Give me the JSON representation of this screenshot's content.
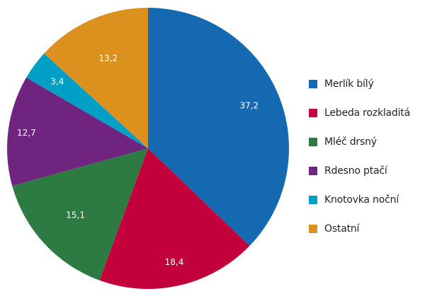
{
  "chart_data": {
    "type": "pie",
    "title": "",
    "start_angle": "12 o'clock",
    "direction": "clockwise",
    "unit": "%",
    "decimal_separator": ",",
    "legend_position": "right",
    "slices": [
      {
        "label": "Merlík bílý",
        "value": 37.2,
        "display": "37,2",
        "color": "#1569b0"
      },
      {
        "label": "Lebeda rozkladitá",
        "value": 18.4,
        "display": "18,4",
        "color": "#c3003b"
      },
      {
        "label": "Mléč drsný",
        "value": 15.1,
        "display": "15,1",
        "color": "#2d7b43"
      },
      {
        "label": "Rdesno ptačí",
        "value": 12.7,
        "display": "12,7",
        "color": "#6f2480"
      },
      {
        "label": "Knotovka noční",
        "value": 3.4,
        "display": "3,4",
        "color": "#00a0c6"
      },
      {
        "label": "Ostatní",
        "value": 13.2,
        "display": "13,2",
        "color": "#dc901d"
      }
    ]
  },
  "legend": {
    "items": [
      {
        "label": "Merlík bílý",
        "color": "#1569b0"
      },
      {
        "label": "Lebeda rozkladitá",
        "color": "#c3003b"
      },
      {
        "label": "Mléč drsný",
        "color": "#2d7b43"
      },
      {
        "label": "Rdesno ptačí",
        "color": "#6f2480"
      },
      {
        "label": "Knotovka noční",
        "color": "#00a0c6"
      },
      {
        "label": "Ostatní",
        "color": "#dc901d"
      }
    ]
  }
}
